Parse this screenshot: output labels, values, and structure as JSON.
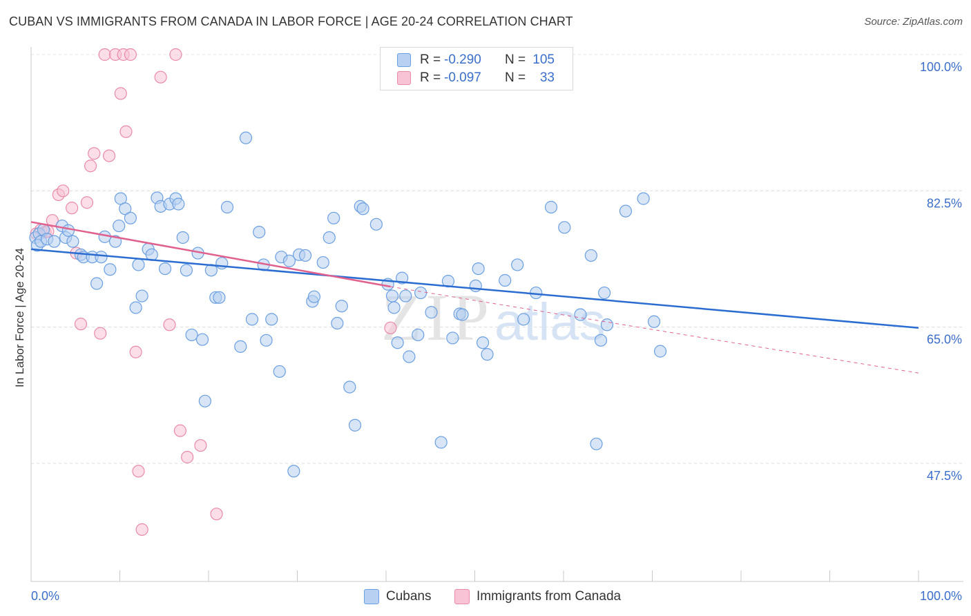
{
  "title": "CUBAN VS IMMIGRANTS FROM CANADA IN LABOR FORCE | AGE 20-24 CORRELATION CHART",
  "source": "Source: ZipAtlas.com",
  "colors": {
    "blue": "#6a9fe0",
    "blue_fill": "#b8d0f1",
    "blue_line": "#2a6cd0",
    "pink": "#e98aa8",
    "pink_fill": "#f8c3d4",
    "pink_line": "#e0608e",
    "axis_text": "#3a6ec9"
  },
  "stats": [
    {
      "r_label": "R =",
      "r_value": "-0.290",
      "n_label": "N =",
      "n_value": "105",
      "color": "blue"
    },
    {
      "r_label": "R =",
      "r_value": "-0.097",
      "n_label": "N =",
      "n_value": "33",
      "color": "pink"
    }
  ],
  "legend": [
    {
      "label": "Cubans",
      "color": "blue"
    },
    {
      "label": "Immigrants from Canada",
      "color": "pink"
    }
  ],
  "watermark": {
    "zip": "ZIP",
    "atlas": "atlas"
  },
  "chart_data": {
    "type": "scatter",
    "xlabel": "",
    "ylabel": "In Labor Force | Age 20-24",
    "xlim": [
      0,
      100
    ],
    "ylim": [
      32,
      101.5
    ],
    "x_tick_labels": [
      "0.0%",
      "100.0%"
    ],
    "y_ticks": [
      100.0,
      82.5,
      65.0,
      47.5
    ],
    "y_tick_labels": [
      "100.0%",
      "82.5%",
      "65.0%",
      "47.5%"
    ],
    "grid": true,
    "series": [
      {
        "name": "Cubans",
        "color": "blue",
        "trend": {
          "x": [
            0,
            100
          ],
          "y": [
            75.0,
            64.9
          ],
          "dashed_to": null
        },
        "points": [
          [
            0.5,
            76.5
          ],
          [
            0.7,
            75.5
          ],
          [
            0.9,
            77.0
          ],
          [
            1.1,
            76.0
          ],
          [
            1.4,
            77.5
          ],
          [
            1.8,
            76.3
          ],
          [
            2.6,
            76.0
          ],
          [
            3.5,
            78.0
          ],
          [
            3.9,
            76.5
          ],
          [
            4.2,
            77.4
          ],
          [
            4.7,
            76.0
          ],
          [
            5.6,
            74.3
          ],
          [
            5.9,
            74.0
          ],
          [
            6.9,
            74.0
          ],
          [
            7.4,
            70.6
          ],
          [
            7.9,
            74.0
          ],
          [
            8.3,
            76.6
          ],
          [
            8.9,
            72.4
          ],
          [
            9.5,
            76.0
          ],
          [
            9.9,
            78.0
          ],
          [
            10.1,
            81.5
          ],
          [
            10.6,
            80.2
          ],
          [
            11.2,
            79.0
          ],
          [
            11.8,
            67.5
          ],
          [
            12.1,
            73.0
          ],
          [
            12.5,
            69.0
          ],
          [
            13.2,
            75.0
          ],
          [
            13.6,
            74.3
          ],
          [
            14.2,
            81.6
          ],
          [
            14.6,
            80.5
          ],
          [
            15.1,
            72.5
          ],
          [
            15.6,
            80.8
          ],
          [
            16.3,
            81.5
          ],
          [
            16.6,
            80.8
          ],
          [
            17.1,
            76.5
          ],
          [
            17.5,
            72.3
          ],
          [
            18.1,
            64.0
          ],
          [
            18.8,
            74.5
          ],
          [
            19.3,
            63.4
          ],
          [
            19.6,
            55.5
          ],
          [
            20.3,
            72.3
          ],
          [
            20.8,
            68.8
          ],
          [
            21.2,
            68.8
          ],
          [
            21.5,
            73.2
          ],
          [
            22.1,
            80.4
          ],
          [
            23.6,
            62.5
          ],
          [
            24.2,
            89.3
          ],
          [
            24.9,
            66.0
          ],
          [
            25.7,
            77.2
          ],
          [
            26.2,
            73.0
          ],
          [
            26.5,
            63.3
          ],
          [
            27.1,
            66.0
          ],
          [
            28.0,
            59.3
          ],
          [
            28.2,
            74.0
          ],
          [
            29.1,
            73.5
          ],
          [
            29.6,
            46.5
          ],
          [
            30.2,
            74.3
          ],
          [
            30.9,
            74.2
          ],
          [
            31.7,
            68.3
          ],
          [
            31.9,
            68.9
          ],
          [
            32.9,
            73.3
          ],
          [
            33.6,
            76.5
          ],
          [
            34.1,
            79.0
          ],
          [
            34.5,
            65.5
          ],
          [
            35.0,
            67.7
          ],
          [
            35.9,
            57.3
          ],
          [
            36.5,
            52.4
          ],
          [
            37.1,
            80.5
          ],
          [
            37.4,
            80.2
          ],
          [
            38.9,
            78.2
          ],
          [
            40.2,
            70.5
          ],
          [
            40.7,
            69.0
          ],
          [
            40.9,
            67.5
          ],
          [
            41.3,
            63.0
          ],
          [
            41.8,
            71.3
          ],
          [
            42.2,
            69.0
          ],
          [
            42.6,
            61.2
          ],
          [
            43.6,
            64.0
          ],
          [
            43.9,
            69.4
          ],
          [
            45.1,
            66.9
          ],
          [
            46.2,
            50.2
          ],
          [
            47.0,
            70.9
          ],
          [
            47.5,
            63.6
          ],
          [
            48.3,
            66.7
          ],
          [
            48.6,
            66.6
          ],
          [
            50.1,
            70.3
          ],
          [
            50.4,
            72.5
          ],
          [
            50.9,
            63.0
          ],
          [
            51.4,
            61.5
          ],
          [
            53.4,
            71.0
          ],
          [
            54.8,
            73.0
          ],
          [
            55.5,
            66.0
          ],
          [
            56.9,
            69.4
          ],
          [
            58.6,
            80.4
          ],
          [
            60.1,
            77.8
          ],
          [
            61.9,
            66.6
          ],
          [
            63.1,
            74.2
          ],
          [
            63.7,
            50.0
          ],
          [
            64.2,
            63.3
          ],
          [
            64.6,
            69.4
          ],
          [
            64.9,
            65.3
          ],
          [
            67.0,
            79.9
          ],
          [
            69.0,
            81.5
          ],
          [
            70.2,
            65.7
          ],
          [
            70.9,
            61.9
          ]
        ]
      },
      {
        "name": "Immigrants from Canada",
        "color": "pink",
        "trend": {
          "x": [
            0,
            40.5
          ],
          "y": [
            78.5,
            70.2
          ],
          "dashed_to": {
            "x": 100,
            "y": 59.1
          }
        },
        "points": [
          [
            0.6,
            77.0
          ],
          [
            1.1,
            77.5
          ],
          [
            1.6,
            77.2
          ],
          [
            1.9,
            77.3
          ],
          [
            2.4,
            78.7
          ],
          [
            3.1,
            82.0
          ],
          [
            3.6,
            82.5
          ],
          [
            4.6,
            80.3
          ],
          [
            5.1,
            74.5
          ],
          [
            5.6,
            65.4
          ],
          [
            6.3,
            81.0
          ],
          [
            6.7,
            85.7
          ],
          [
            7.1,
            87.3
          ],
          [
            7.8,
            64.2
          ],
          [
            8.3,
            100.0
          ],
          [
            8.8,
            87.0
          ],
          [
            9.5,
            100.0
          ],
          [
            10.1,
            95.0
          ],
          [
            10.4,
            100.0
          ],
          [
            10.7,
            90.1
          ],
          [
            11.2,
            100.0
          ],
          [
            11.8,
            61.8
          ],
          [
            12.1,
            46.5
          ],
          [
            12.5,
            39.0
          ],
          [
            14.6,
            97.1
          ],
          [
            15.6,
            65.3
          ],
          [
            16.3,
            100.0
          ],
          [
            16.8,
            51.7
          ],
          [
            17.6,
            48.3
          ],
          [
            19.1,
            49.8
          ],
          [
            20.9,
            41.0
          ],
          [
            40.3,
            100.0
          ],
          [
            40.5,
            64.9
          ]
        ]
      }
    ]
  }
}
